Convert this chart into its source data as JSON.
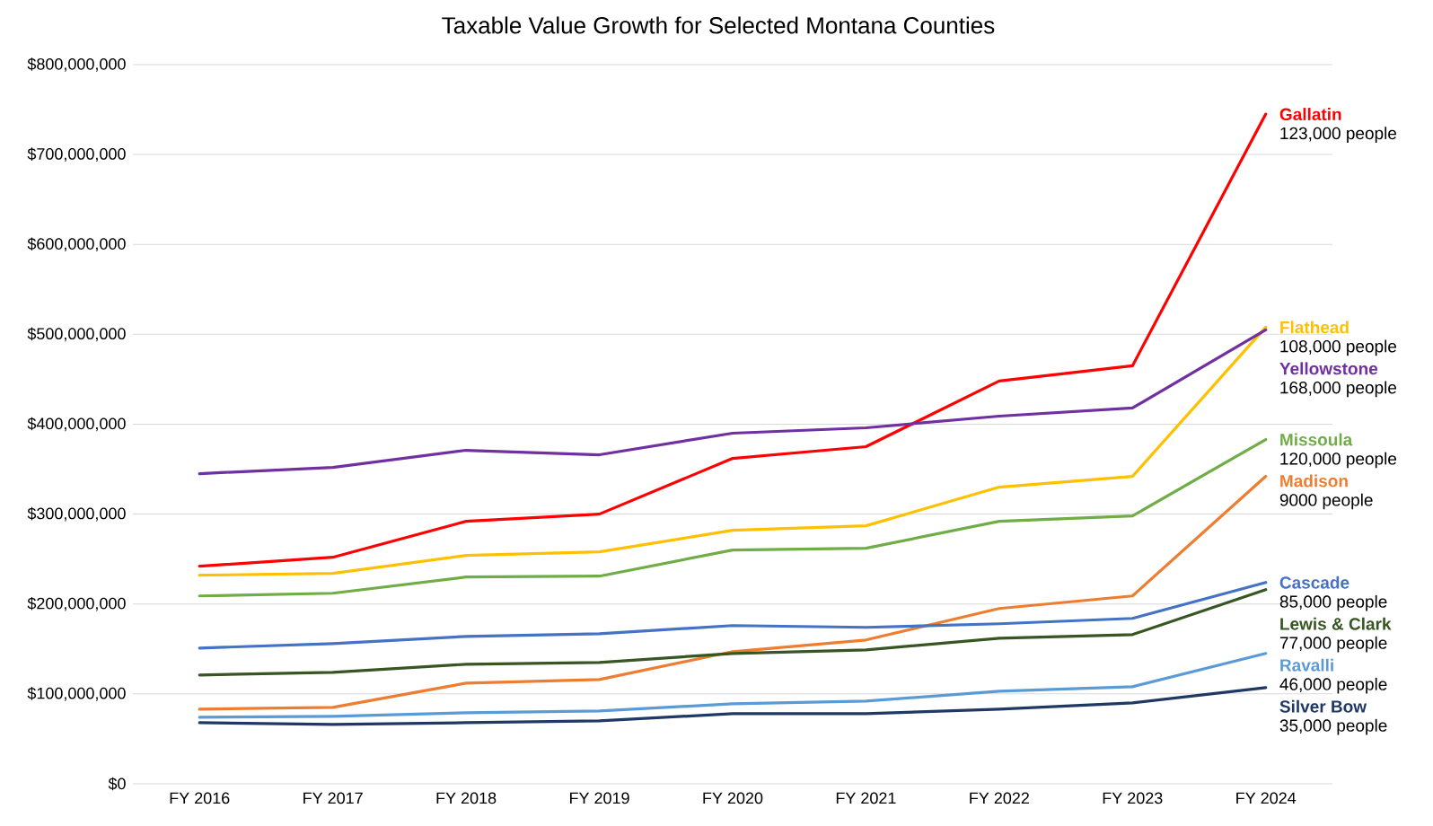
{
  "chart_data": {
    "type": "line",
    "title": "Taxable Value Growth for Selected Montana Counties",
    "categories": [
      "FY 2016",
      "FY 2017",
      "FY 2018",
      "FY 2019",
      "FY 2020",
      "FY 2021",
      "FY 2022",
      "FY 2023",
      "FY 2024"
    ],
    "series": [
      {
        "name": "Gallatin",
        "color": "#ff0000",
        "values": [
          242000000,
          252000000,
          292000000,
          300000000,
          362000000,
          375000000,
          448000000,
          465000000,
          745000000
        ]
      },
      {
        "name": "Flathead",
        "color": "#ffc000",
        "values": [
          232000000,
          234000000,
          254000000,
          258000000,
          282000000,
          287000000,
          330000000,
          342000000,
          508000000
        ]
      },
      {
        "name": "Yellowstone",
        "color": "#7030a0",
        "values": [
          345000000,
          352000000,
          371000000,
          366000000,
          390000000,
          396000000,
          409000000,
          418000000,
          505000000
        ]
      },
      {
        "name": "Missoula",
        "color": "#70ad47",
        "values": [
          209000000,
          212000000,
          230000000,
          231000000,
          260000000,
          262000000,
          292000000,
          298000000,
          383000000
        ]
      },
      {
        "name": "Madison",
        "color": "#ed7d31",
        "values": [
          83000000,
          85000000,
          112000000,
          116000000,
          147000000,
          160000000,
          195000000,
          209000000,
          342000000
        ]
      },
      {
        "name": "Cascade",
        "color": "#4472c4",
        "values": [
          151000000,
          156000000,
          164000000,
          167000000,
          176000000,
          174000000,
          178000000,
          184000000,
          224000000
        ]
      },
      {
        "name": "Lewis & Clark",
        "color": "#375623",
        "values": [
          121000000,
          124000000,
          133000000,
          135000000,
          145000000,
          149000000,
          162000000,
          166000000,
          216000000
        ]
      },
      {
        "name": "Ravalli",
        "color": "#5b9bd5",
        "values": [
          74000000,
          75000000,
          79000000,
          81000000,
          89000000,
          92000000,
          103000000,
          108000000,
          145000000
        ]
      },
      {
        "name": "Silver Bow",
        "color": "#203864",
        "values": [
          68000000,
          66000000,
          68000000,
          70000000,
          78000000,
          78000000,
          83000000,
          90000000,
          107000000
        ]
      }
    ],
    "ylim": [
      0,
      800000000
    ],
    "yticks": [
      {
        "value": 0,
        "label": "$0"
      },
      {
        "value": 100000000,
        "label": "$100,000,000"
      },
      {
        "value": 200000000,
        "label": "$200,000,000"
      },
      {
        "value": 300000000,
        "label": "$300,000,000"
      },
      {
        "value": 400000000,
        "label": "$400,000,000"
      },
      {
        "value": 500000000,
        "label": "$500,000,000"
      },
      {
        "value": 600000000,
        "label": "$600,000,000"
      },
      {
        "value": 700000000,
        "label": "$700,000,000"
      },
      {
        "value": 800000000,
        "label": "$800,000,000"
      }
    ],
    "grid": "y",
    "line_style": "solid",
    "annotations": [
      "123,000 people",
      "108,000 people",
      "168,000 people",
      "120,000 people",
      "9000 people",
      "85,000 people",
      "77,000 people",
      "46,000 people",
      "35,000 people"
    ]
  }
}
